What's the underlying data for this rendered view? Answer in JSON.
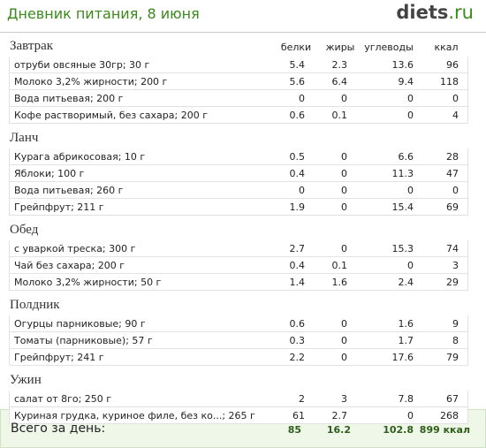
{
  "header": {
    "title": "Дневник питания, 8 июня",
    "logo": "diets",
    "logo_suffix": ".ru"
  },
  "columns": [
    "белки",
    "жиры",
    "углеводы",
    "ккал"
  ],
  "sections": [
    {
      "name": "Завтрак",
      "rows": [
        [
          "отруби овсяные 30гр; 30 г",
          "5.4",
          "2.3",
          "13.6",
          "96"
        ],
        [
          "Молоко 3,2% жирности; 200 г",
          "5.6",
          "6.4",
          "9.4",
          "118"
        ],
        [
          "Вода питьевая; 200 г",
          "0",
          "0",
          "0",
          "0"
        ],
        [
          "Кофе растворимый, без сахара; 200 г",
          "0.6",
          "0.1",
          "0",
          "4"
        ]
      ]
    },
    {
      "name": "Ланч",
      "rows": [
        [
          "Курага абрикосовая; 10 г",
          "0.5",
          "0",
          "6.6",
          "28"
        ],
        [
          "Яблоки; 100 г",
          "0.4",
          "0",
          "11.3",
          "47"
        ],
        [
          "Вода питьевая; 260 г",
          "0",
          "0",
          "0",
          "0"
        ],
        [
          "Грейпфрут; 211 г",
          "1.9",
          "0",
          "15.4",
          "69"
        ]
      ]
    },
    {
      "name": "Обед",
      "rows": [
        [
          "с уваркой треска; 300 г",
          "2.7",
          "0",
          "15.3",
          "74"
        ],
        [
          "Чай без сахара; 200 г",
          "0.4",
          "0.1",
          "0",
          "3"
        ],
        [
          "Молоко 3,2% жирности; 50 г",
          "1.4",
          "1.6",
          "2.4",
          "29"
        ]
      ]
    },
    {
      "name": "Полдник",
      "rows": [
        [
          "Огурцы парниковые; 90 г",
          "0.6",
          "0",
          "1.6",
          "9"
        ],
        [
          "Томаты (парниковые); 57 г",
          "0.3",
          "0",
          "1.7",
          "8"
        ],
        [
          "Грейпфрут; 241 г",
          "2.2",
          "0",
          "17.6",
          "79"
        ]
      ]
    },
    {
      "name": "Ужин",
      "rows": [
        [
          "салат от 8го; 250 г",
          "2",
          "3",
          "7.8",
          "67"
        ],
        [
          "Куриная грудка, куриное филе, без ко...; 265 г",
          "61",
          "2.7",
          "0",
          "268"
        ]
      ]
    }
  ],
  "totals": {
    "label": "Всего за день:",
    "values": [
      "85",
      "16.2",
      "102.8",
      "899 ккал"
    ]
  }
}
